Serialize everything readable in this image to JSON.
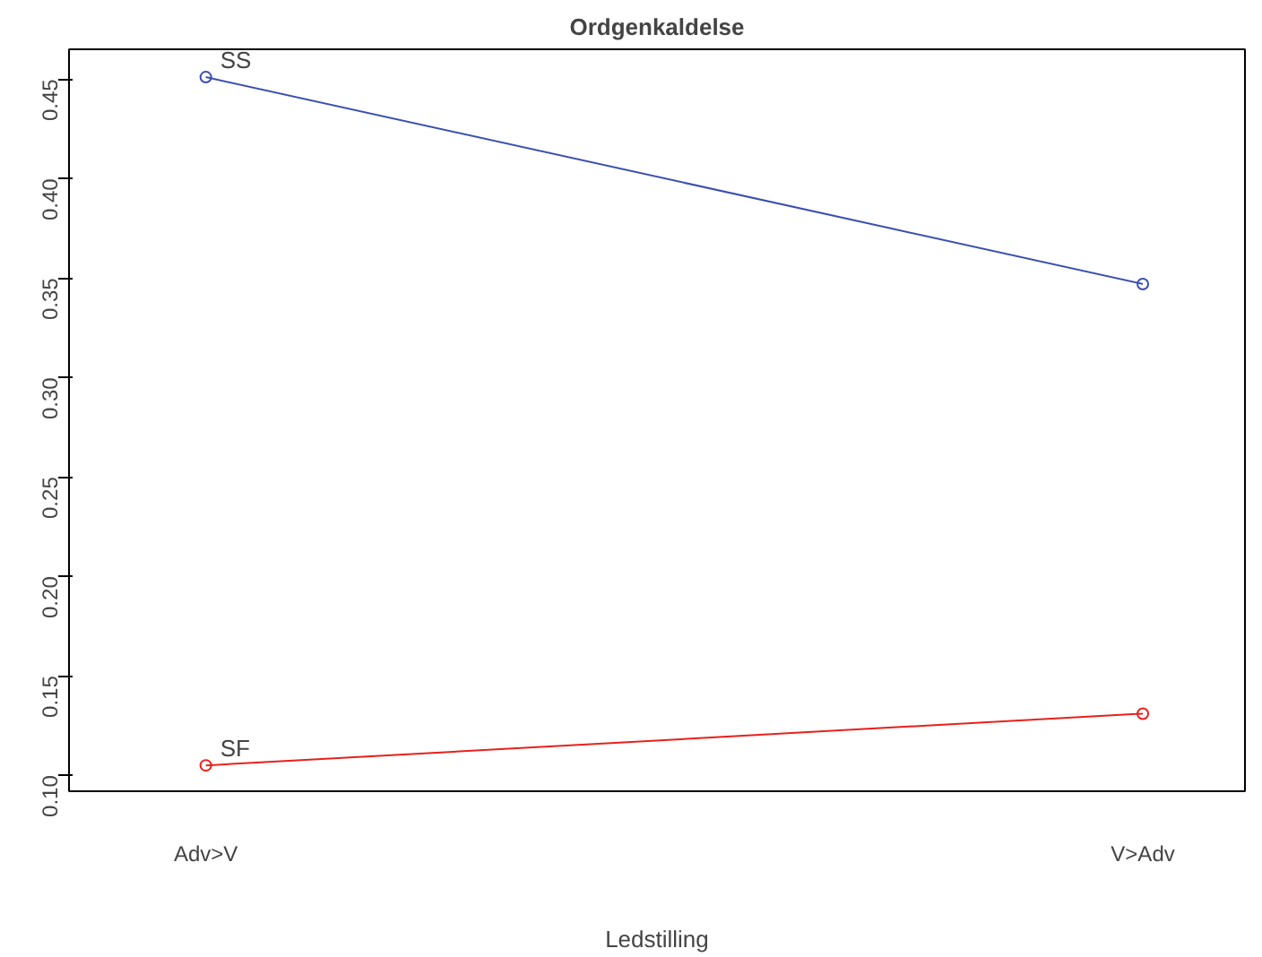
{
  "chart_data": {
    "type": "line",
    "title": "Ordgenkaldelse",
    "xlabel": "Ledstilling",
    "categories": [
      "Adv>V",
      "V>Adv"
    ],
    "series": [
      {
        "name": "SS",
        "color": "#3a4fb0",
        "values": [
          0.451,
          0.347
        ]
      },
      {
        "name": "SF",
        "color": "#e8201c",
        "values": [
          0.105,
          0.131
        ]
      }
    ],
    "ylim": [
      0.092,
      0.465
    ],
    "yticks": [
      {
        "value": 0.1,
        "label": "0.10"
      },
      {
        "value": 0.15,
        "label": "0.15"
      },
      {
        "value": 0.2,
        "label": "0.20"
      },
      {
        "value": 0.25,
        "label": "0.25"
      },
      {
        "value": 0.3,
        "label": "0.30"
      },
      {
        "value": 0.35,
        "label": "0.35"
      },
      {
        "value": 0.4,
        "label": "0.40"
      },
      {
        "value": 0.45,
        "label": "0.45"
      }
    ],
    "marker": "circle",
    "line_style": "solid",
    "grid": false
  }
}
